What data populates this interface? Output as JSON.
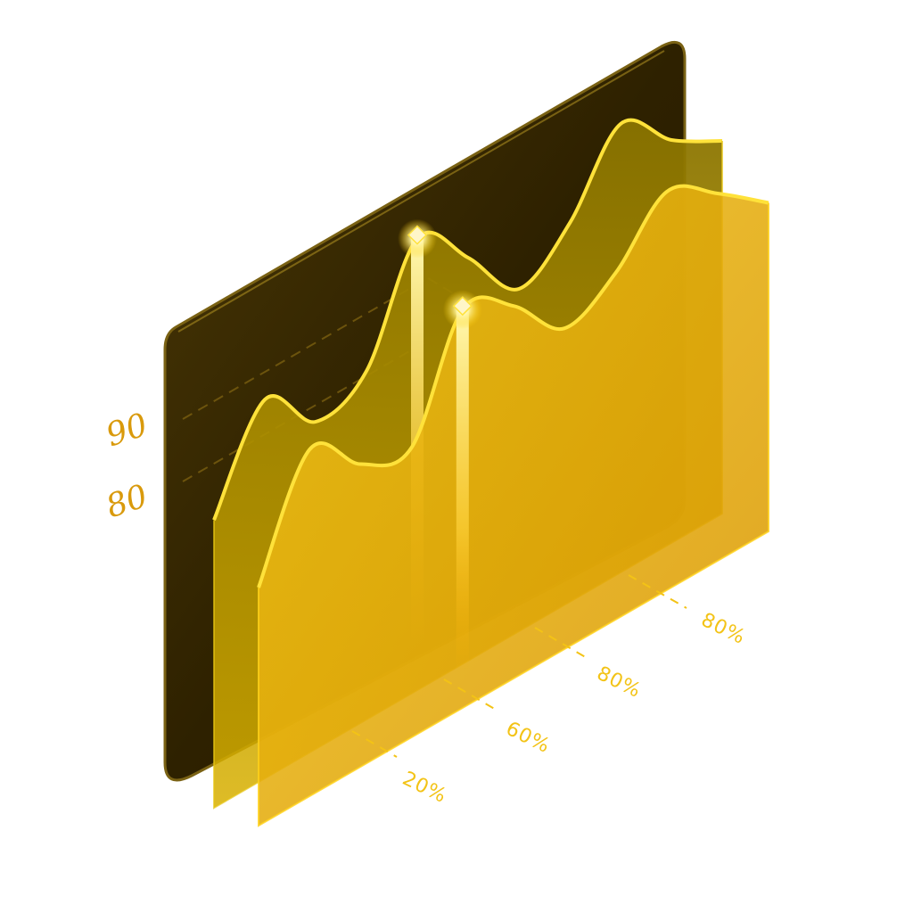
{
  "chart_data": {
    "type": "area",
    "title": "",
    "xlabel": "",
    "ylabel": "",
    "style": "isometric-3d",
    "y_ticks": [
      "90",
      "80"
    ],
    "x_ticks": [
      "20%",
      "60%",
      "80%",
      "80%"
    ],
    "x": [
      0,
      0.1,
      0.2,
      0.3,
      0.4,
      0.5,
      0.6,
      0.7,
      0.8,
      0.9,
      1.0
    ],
    "series": [
      {
        "layer": "back",
        "values": [
          0.42,
          0.72,
          0.55,
          0.62,
          0.96,
          0.8,
          0.6,
          0.72,
          0.95,
          0.8,
          0.7
        ],
        "highlight_index": 4
      },
      {
        "layer": "front",
        "values": [
          0.3,
          0.72,
          0.55,
          0.5,
          0.92,
          0.82,
          0.62,
          0.72,
          0.92,
          0.8,
          0.65
        ],
        "highlight_index": 4
      }
    ],
    "grid": true,
    "colors": {
      "back_panel": "#2b1f00",
      "back_panel_edge": "#6b5410",
      "back_area": "#c9a600",
      "front_area": "#f2b705",
      "outline": "#ffe23a",
      "y_tick_color": "#d99a0c",
      "x_tick_color": "#f3c316",
      "glow": "#fff6a0"
    }
  }
}
